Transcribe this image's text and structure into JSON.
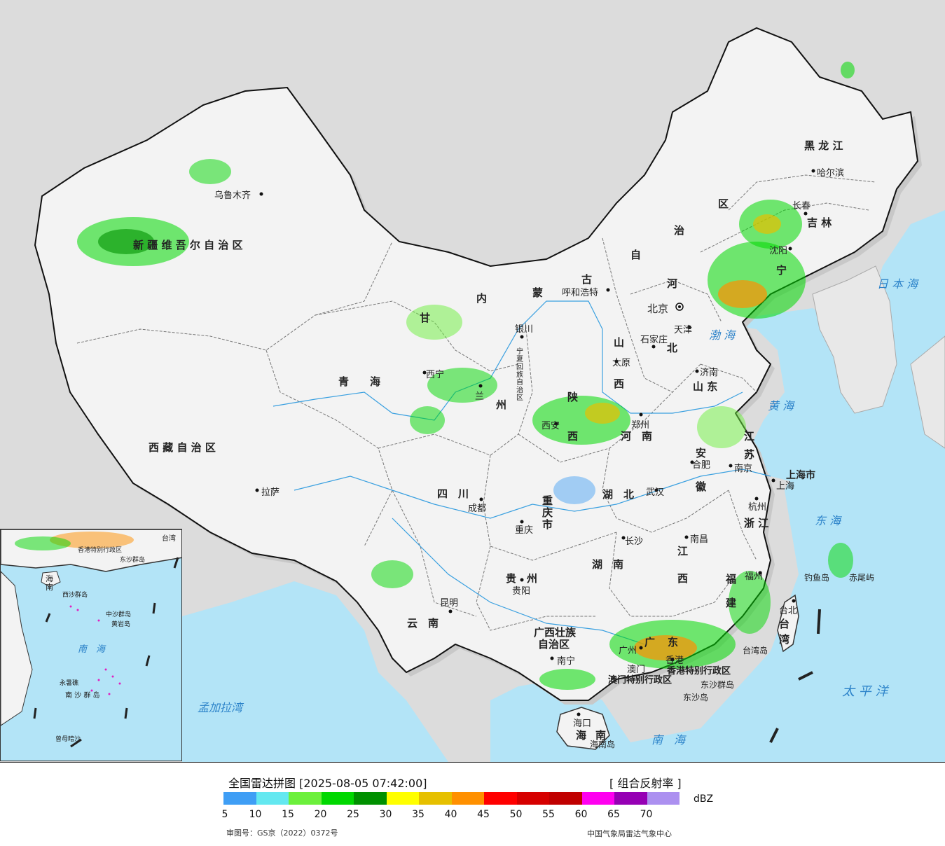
{
  "legend": {
    "title": "全国雷达拼图 [2025-08-05 07:42:00]",
    "product": "[ 组合反射率 ]",
    "unit": "dBZ",
    "approval_no": "审图号：GS京（2022）0372号",
    "source": "中国气象局雷达气象中心",
    "colors": [
      "#3f9ef5",
      "#64e8f0",
      "#6cf03c",
      "#00d800",
      "#009000",
      "#ffff00",
      "#e6c000",
      "#ff9000",
      "#ff0000",
      "#d60000",
      "#c00000",
      "#ff00f0",
      "#9600b4",
      "#ac90f0"
    ],
    "ticks": [
      "5",
      "10",
      "15",
      "20",
      "25",
      "30",
      "35",
      "40",
      "45",
      "50",
      "55",
      "60",
      "65",
      "70"
    ]
  },
  "map": {
    "provinces": [
      {
        "id": "xinjiang",
        "text": "新 疆 维 吾 尔 自 治 区"
      },
      {
        "id": "xizang",
        "text": "西 藏 自 治 区"
      },
      {
        "id": "qinghai",
        "text": "青　　海"
      },
      {
        "id": "gansu",
        "text": "甘"
      },
      {
        "id": "neimenggu_1",
        "text": "内"
      },
      {
        "id": "neimenggu_2",
        "text": "蒙"
      },
      {
        "id": "neimenggu_3",
        "text": "古"
      },
      {
        "id": "neimenggu_4",
        "text": "自"
      },
      {
        "id": "neimenggu_5",
        "text": "治"
      },
      {
        "id": "neimenggu_6",
        "text": "区"
      },
      {
        "id": "heilongjiang",
        "text": "黑 龙 江"
      },
      {
        "id": "jilin",
        "text": "吉 林"
      },
      {
        "id": "liaoning",
        "text": "宁"
      },
      {
        "id": "hebei_1",
        "text": "河"
      },
      {
        "id": "hebei_2",
        "text": "北"
      },
      {
        "id": "shanxi_1",
        "text": "山"
      },
      {
        "id": "shanxi_2",
        "text": "西"
      },
      {
        "id": "shandong",
        "text": "山 东"
      },
      {
        "id": "henan",
        "text": "河　南"
      },
      {
        "id": "shaanxi_1",
        "text": "陕"
      },
      {
        "id": "shaanxi_2",
        "text": "西"
      },
      {
        "id": "jiangsu_1",
        "text": "江"
      },
      {
        "id": "jiangsu_2",
        "text": "苏"
      },
      {
        "id": "anhui_1",
        "text": "安"
      },
      {
        "id": "anhui_2",
        "text": "徽"
      },
      {
        "id": "hubei",
        "text": "湖　北"
      },
      {
        "id": "sichuan",
        "text": "四　川"
      },
      {
        "id": "chongqing",
        "text": "重 庆 市"
      },
      {
        "id": "zhejiang",
        "text": "浙 江"
      },
      {
        "id": "jiangxi_1",
        "text": "江"
      },
      {
        "id": "jiangxi_2",
        "text": "西"
      },
      {
        "id": "hunan",
        "text": "湖　南"
      },
      {
        "id": "fujian_1",
        "text": "福"
      },
      {
        "id": "fujian_2",
        "text": "建"
      },
      {
        "id": "guizhou",
        "text": "贵　州"
      },
      {
        "id": "yunnan",
        "text": "云　南"
      },
      {
        "id": "guangxi_1",
        "text": "广西壮族"
      },
      {
        "id": "guangxi_2",
        "text": "自治区"
      },
      {
        "id": "guangdong_1",
        "text": "广"
      },
      {
        "id": "guangdong_2",
        "text": "东"
      },
      {
        "id": "hainan_1",
        "text": "海"
      },
      {
        "id": "hainan_2",
        "text": "南"
      },
      {
        "id": "taiwan_1",
        "text": "台"
      },
      {
        "id": "taiwan_2",
        "text": "湾"
      },
      {
        "id": "shanghai",
        "text": "上海市"
      },
      {
        "id": "gansu_lanzhou",
        "text": "州"
      },
      {
        "id": "ningxia",
        "text": "宁夏回族自治区"
      },
      {
        "id": "hk_macau",
        "text": "香港特别行政区"
      },
      {
        "id": "macau",
        "text": "澳门特别行政区"
      }
    ],
    "cities": [
      {
        "id": "urumqi",
        "text": "乌鲁木齐"
      },
      {
        "id": "lhasa",
        "text": "拉萨"
      },
      {
        "id": "xining",
        "text": "西宁"
      },
      {
        "id": "lanzhou",
        "text": "兰"
      },
      {
        "id": "yinchuan",
        "text": "银川"
      },
      {
        "id": "hohhot",
        "text": "呼和浩特"
      },
      {
        "id": "beijing",
        "text": "北京"
      },
      {
        "id": "tianjin",
        "text": "天津"
      },
      {
        "id": "shijiazhuang",
        "text": "石家庄"
      },
      {
        "id": "taiyuan",
        "text": "太原"
      },
      {
        "id": "jinan",
        "text": "济南"
      },
      {
        "id": "zhengzhou",
        "text": "郑州"
      },
      {
        "id": "xian",
        "text": "西安"
      },
      {
        "id": "hefei",
        "text": "合肥"
      },
      {
        "id": "nanjing",
        "text": "南京"
      },
      {
        "id": "shanghai_city",
        "text": "上海"
      },
      {
        "id": "hangzhou",
        "text": "杭州"
      },
      {
        "id": "wuhan",
        "text": "武汉"
      },
      {
        "id": "chengdu",
        "text": "成都"
      },
      {
        "id": "chongqing_city",
        "text": "重庆"
      },
      {
        "id": "nanchang",
        "text": "南昌"
      },
      {
        "id": "changsha",
        "text": "长沙"
      },
      {
        "id": "fuzhou",
        "text": "福州"
      },
      {
        "id": "guiyang",
        "text": "贵阳"
      },
      {
        "id": "kunming",
        "text": "昆明"
      },
      {
        "id": "nanning",
        "text": "南宁"
      },
      {
        "id": "guangzhou",
        "text": "广州"
      },
      {
        "id": "hongkong",
        "text": "香港"
      },
      {
        "id": "macau_city",
        "text": "澳门"
      },
      {
        "id": "haikou",
        "text": "海口"
      },
      {
        "id": "taibei",
        "text": "台北"
      },
      {
        "id": "harbin",
        "text": "哈尔滨"
      },
      {
        "id": "changchun",
        "text": "长春"
      },
      {
        "id": "shenyang",
        "text": "沈阳"
      }
    ],
    "seas": [
      {
        "id": "sea_japan",
        "text": "日 本 海"
      },
      {
        "id": "bohai",
        "text": "渤 海"
      },
      {
        "id": "huanghai",
        "text": "黄 海"
      },
      {
        "id": "donghai",
        "text": "东 海"
      },
      {
        "id": "taipingyang",
        "text": "太 平 洋"
      },
      {
        "id": "nanhai",
        "text": "南　海"
      },
      {
        "id": "mengjiala",
        "text": "孟加拉湾"
      }
    ],
    "islands": [
      {
        "id": "diaoyu",
        "text": "钓鱼岛"
      },
      {
        "id": "chiwei",
        "text": "赤尾屿"
      },
      {
        "id": "taiwan_island",
        "text": "台湾岛"
      },
      {
        "id": "dongsha",
        "text": "东沙群岛"
      },
      {
        "id": "dongsha_island",
        "text": "东沙岛"
      },
      {
        "id": "hainan_island",
        "text": "海南岛"
      }
    ],
    "inset_labels": [
      {
        "id": "inset_nanhai",
        "text": "南　海"
      },
      {
        "id": "inset_hainan",
        "text": "海 南"
      },
      {
        "id": "inset_xisha",
        "text": "西沙群岛"
      },
      {
        "id": "inset_zhongsha",
        "text": "中沙群岛"
      },
      {
        "id": "inset_nansha",
        "text": "南 沙 群 岛"
      },
      {
        "id": "inset_dongsha",
        "text": "东沙群岛"
      },
      {
        "id": "inset_hk",
        "text": "香港特别行政区"
      },
      {
        "id": "inset_zengmu",
        "text": "曾母暗沙"
      },
      {
        "id": "inset_yongshu",
        "text": "永暑礁"
      },
      {
        "id": "inset_huangyan",
        "text": "黄岩岛"
      },
      {
        "id": "inset_taiwan",
        "text": "台湾"
      }
    ]
  }
}
